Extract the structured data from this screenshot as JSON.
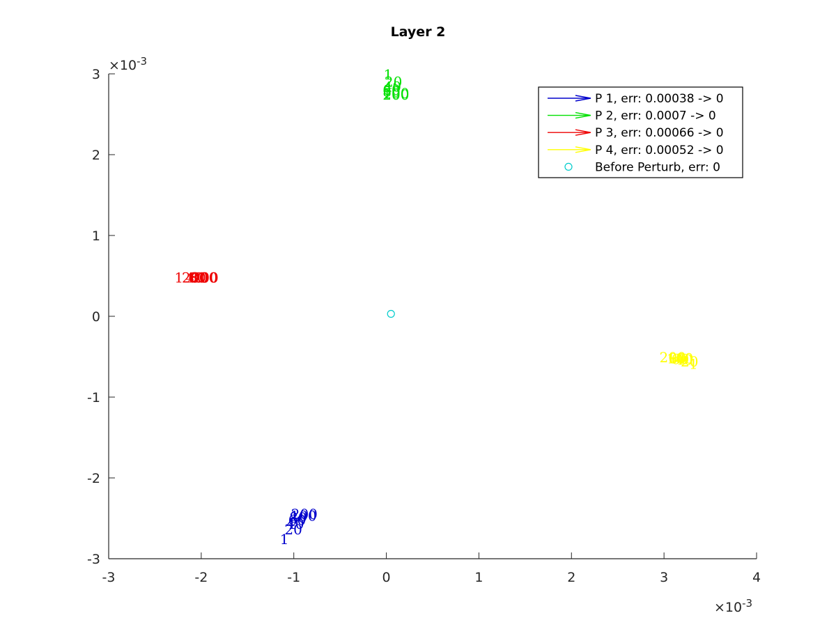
{
  "chart_data": {
    "type": "scatter",
    "title": "Layer 2",
    "xlabel": "",
    "ylabel": "",
    "xlim": [
      -0.003,
      0.004
    ],
    "ylim": [
      -0.003,
      0.003
    ],
    "x_ticks": [
      -3,
      -2,
      -1,
      0,
      1,
      2,
      3,
      4
    ],
    "y_ticks": [
      -3,
      -2,
      -1,
      0,
      1,
      2,
      3
    ],
    "x_multiplier": "×10",
    "x_exponent": "-3",
    "y_multiplier": "×10",
    "y_exponent": "-3",
    "grid": false,
    "legend_position": "top-right",
    "series": [
      {
        "name": "P 1, err: 0.00038 -> 0",
        "color": "#0000cc",
        "points": [
          {
            "label": "1",
            "x": -0.00115,
            "y": -0.00282
          },
          {
            "label": "20",
            "x": -0.0011,
            "y": -0.0027
          },
          {
            "label": "40",
            "x": -0.00108,
            "y": -0.00263
          },
          {
            "label": "60",
            "x": -0.00106,
            "y": -0.00258
          },
          {
            "label": "80",
            "x": -0.00105,
            "y": -0.00255
          },
          {
            "label": "100",
            "x": -0.00104,
            "y": -0.00253
          },
          {
            "label": "200",
            "x": -0.00103,
            "y": -0.00251
          }
        ]
      },
      {
        "name": "P 2, err: 0.0007 -> 0",
        "color": "#00e000",
        "points": [
          {
            "label": "1",
            "x": -3e-05,
            "y": 0.00293
          },
          {
            "label": "20",
            "x": -2e-05,
            "y": 0.00284
          },
          {
            "label": "40",
            "x": -3e-05,
            "y": 0.00278
          },
          {
            "label": "60",
            "x": -4e-05,
            "y": 0.00274
          },
          {
            "label": "80",
            "x": -4e-05,
            "y": 0.00272
          },
          {
            "label": "100",
            "x": -4e-05,
            "y": 0.0027
          },
          {
            "label": "200",
            "x": -4e-05,
            "y": 0.00268
          }
        ]
      },
      {
        "name": "P 3, err: 0.00066 -> 0",
        "color": "#ee0000",
        "points": [
          {
            "label": "1",
            "x": -0.00229,
            "y": 0.00042
          },
          {
            "label": "20",
            "x": -0.00221,
            "y": 0.00042
          },
          {
            "label": "40",
            "x": -0.00217,
            "y": 0.00042
          },
          {
            "label": "60",
            "x": -0.00214,
            "y": 0.00042
          },
          {
            "label": "80",
            "x": -0.00212,
            "y": 0.00042
          },
          {
            "label": "100",
            "x": -0.00211,
            "y": 0.00042
          },
          {
            "label": "200",
            "x": -0.0021,
            "y": 0.00042
          }
        ]
      },
      {
        "name": "P 4, err: 0.00052 -> 0",
        "color": "#ffff00",
        "points": [
          {
            "label": "1",
            "x": 0.00327,
            "y": -0.00065
          },
          {
            "label": "20",
            "x": 0.00318,
            "y": -0.00062
          },
          {
            "label": "40",
            "x": 0.00312,
            "y": -0.0006
          },
          {
            "label": "60",
            "x": 0.00308,
            "y": -0.00059
          },
          {
            "label": "80",
            "x": 0.00305,
            "y": -0.00058
          },
          {
            "label": "100",
            "x": 0.00303,
            "y": -0.00058
          },
          {
            "label": "200",
            "x": 0.00295,
            "y": -0.00057
          }
        ]
      }
    ],
    "marker": {
      "name": "Before Perturb, err: 0",
      "color": "#00cccc",
      "x": 5e-05,
      "y": 3e-05
    }
  }
}
